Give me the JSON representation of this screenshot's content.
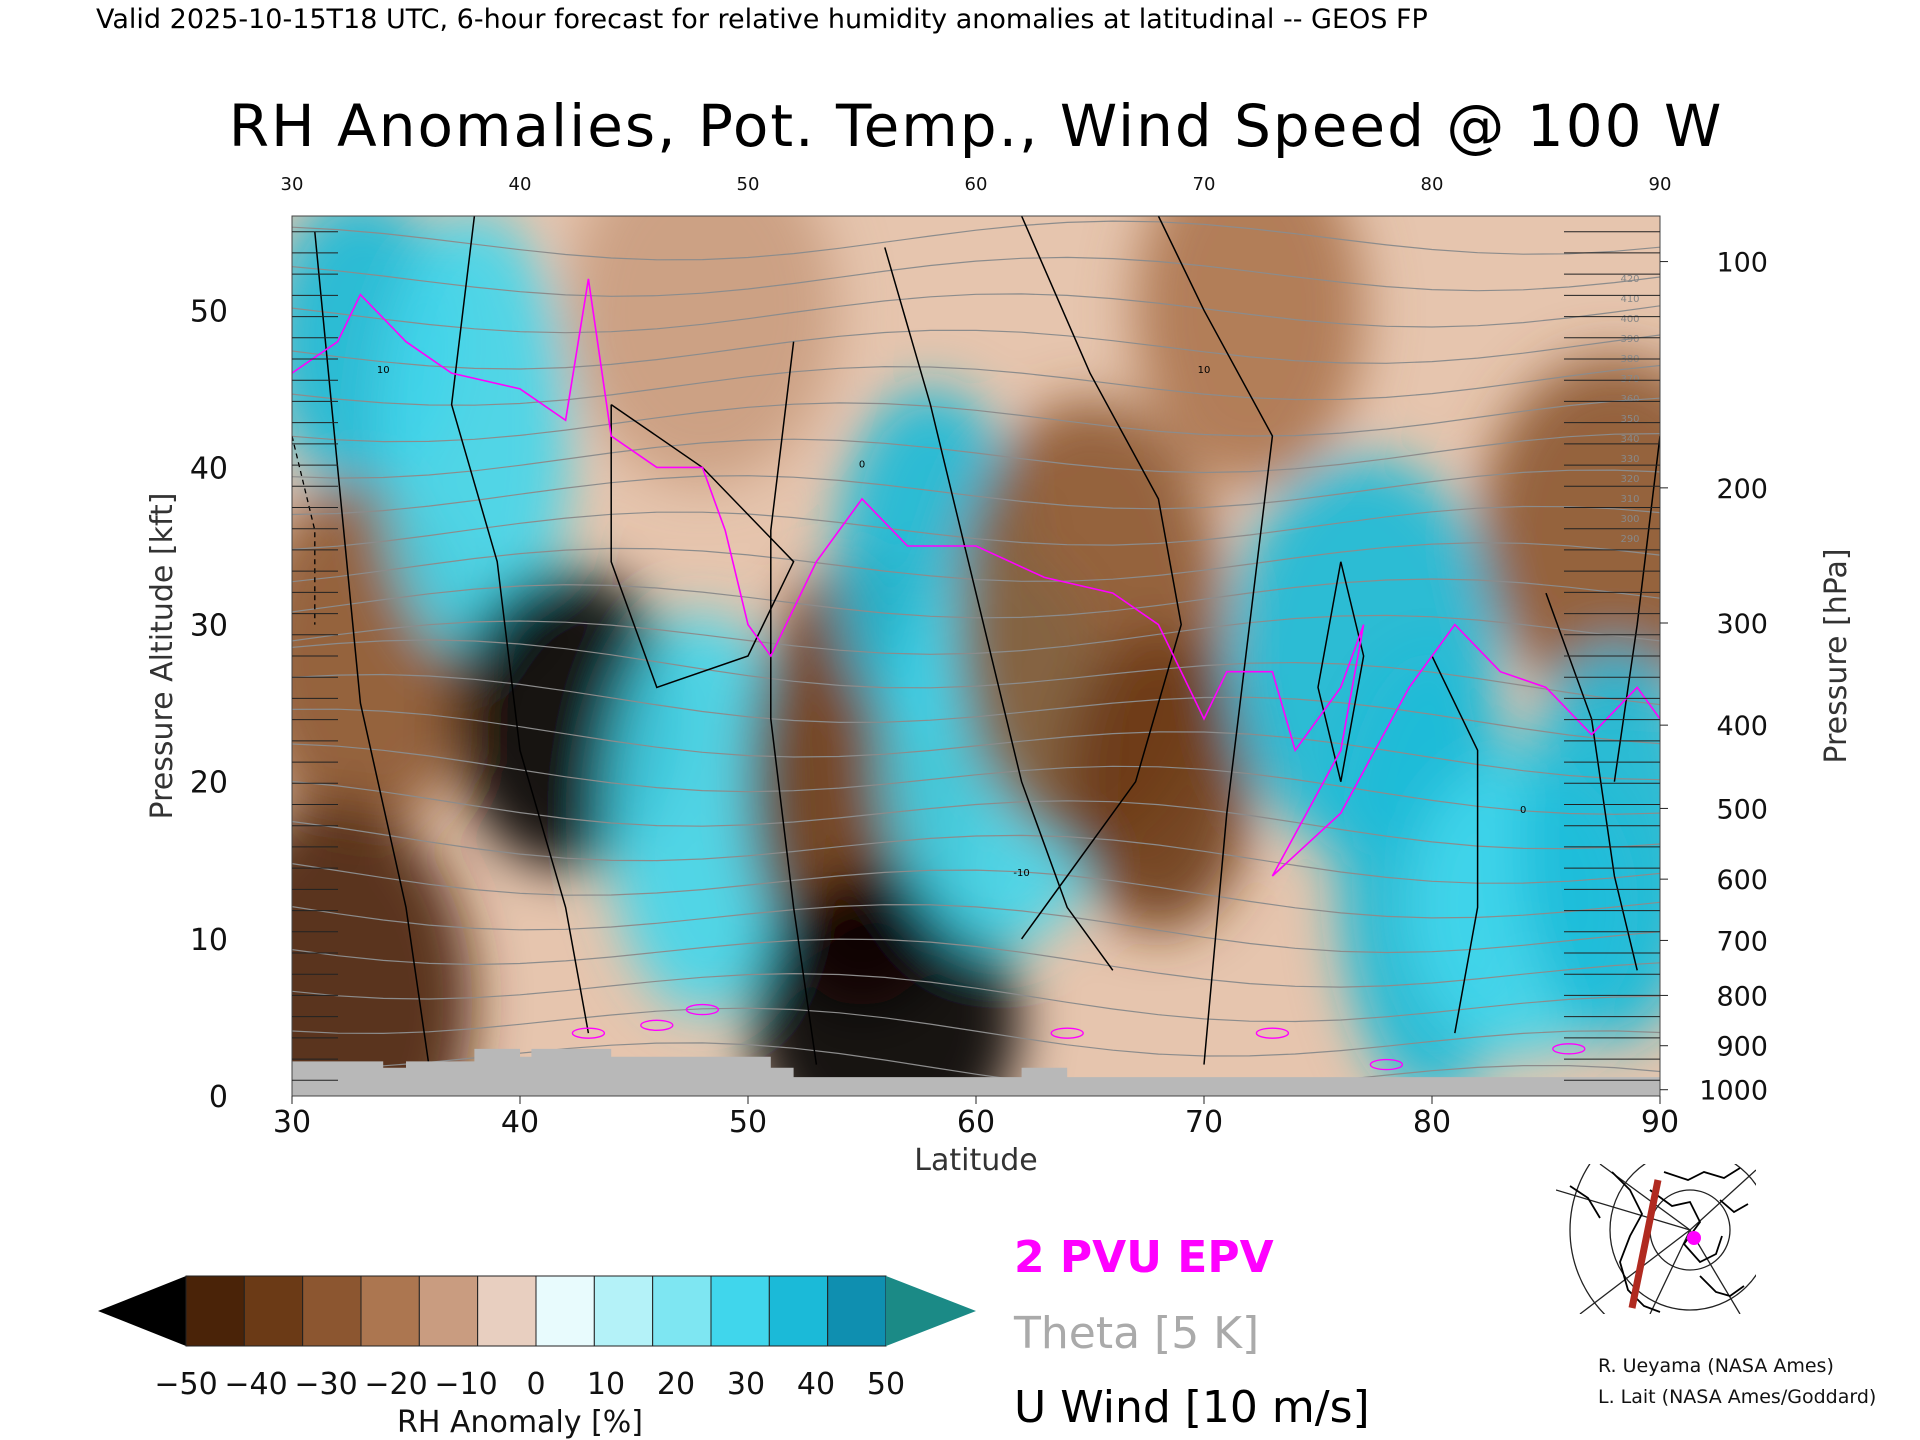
{
  "header": {
    "valid_line": "Valid 2025-10-15T18 UTC, 6-hour forecast for relative humidity anomalies at latitudinal -- GEOS FP"
  },
  "chart_data": {
    "type": "heatmap",
    "title": "RH Anomalies, Pot. Temp., Wind Speed @ 100 W",
    "xlabel": "Latitude",
    "ylabel": "Pressure Altitude [kft]",
    "y2label": "Pressure [hPa]",
    "xlim": [
      30,
      90
    ],
    "ylim": [
      0,
      56
    ],
    "x_ticks": [
      "30",
      "40",
      "50",
      "60",
      "70",
      "80",
      "90"
    ],
    "x_ticks_top": [
      "30",
      "40",
      "50",
      "60",
      "70",
      "80",
      "90"
    ],
    "y_ticks": [
      "0",
      "10",
      "20",
      "30",
      "40",
      "50"
    ],
    "pressure_levels": [
      {
        "hpa": "100",
        "kft": 53.1
      },
      {
        "hpa": "200",
        "kft": 38.7
      },
      {
        "hpa": "300",
        "kft": 30.1
      },
      {
        "hpa": "400",
        "kft": 23.6
      },
      {
        "hpa": "500",
        "kft": 18.3
      },
      {
        "hpa": "600",
        "kft": 13.8
      },
      {
        "hpa": "700",
        "kft": 9.9
      },
      {
        "hpa": "800",
        "kft": 6.4
      },
      {
        "hpa": "900",
        "kft": 3.2
      },
      {
        "hpa": "1000",
        "kft": 0.4
      }
    ],
    "colorbar": {
      "label": "RH Anomaly [%]",
      "tick_labels": [
        "-50",
        "-40",
        "-30",
        "-20",
        "-10",
        "0",
        "10",
        "20",
        "30",
        "40",
        "50"
      ],
      "colors": [
        "#000000",
        "#4a2308",
        "#6b3a16",
        "#8c5630",
        "#ac7650",
        "#c99c80",
        "#e8cfc0",
        "#e8fbfd",
        "#b4f2f8",
        "#7ee6f2",
        "#40d6ec",
        "#1bbad8",
        "#0f8fb0",
        "#1b8a86"
      ]
    },
    "rh_anomaly_regions": [
      {
        "lat": 33,
        "kft": 48,
        "value": 40
      },
      {
        "lat": 33,
        "kft": 28,
        "value": -30
      },
      {
        "lat": 32,
        "kft": 6,
        "value": -45
      },
      {
        "lat": 38,
        "kft": 42,
        "value": 30
      },
      {
        "lat": 42,
        "kft": 24,
        "value": -50
      },
      {
        "lat": 48,
        "kft": 50,
        "value": -10
      },
      {
        "lat": 48,
        "kft": 18,
        "value": 30
      },
      {
        "lat": 55,
        "kft": 20,
        "value": -40
      },
      {
        "lat": 56,
        "kft": 5,
        "value": -50
      },
      {
        "lat": 58,
        "kft": 34,
        "value": 40
      },
      {
        "lat": 61,
        "kft": 22,
        "value": 35
      },
      {
        "lat": 65,
        "kft": 30,
        "value": -30
      },
      {
        "lat": 68,
        "kft": 20,
        "value": -40
      },
      {
        "lat": 72,
        "kft": 50,
        "value": -20
      },
      {
        "lat": 77,
        "kft": 28,
        "value": 40
      },
      {
        "lat": 80,
        "kft": 14,
        "value": 45
      },
      {
        "lat": 84,
        "kft": 12,
        "value": 30
      },
      {
        "lat": 88,
        "kft": 36,
        "value": -30
      },
      {
        "lat": 88,
        "kft": 16,
        "value": 45
      }
    ],
    "theta_labels": [
      "420",
      "410",
      "400",
      "390",
      "380",
      "370",
      "360",
      "350",
      "340",
      "330",
      "320",
      "310",
      "300",
      "290"
    ],
    "u_wind_labels": [
      "10",
      "0",
      "-10"
    ],
    "legend": [
      {
        "label": "2 PVU EPV",
        "color": "#ff00ff"
      },
      {
        "label": "Theta [5 K]",
        "color": "#aaaaaa"
      },
      {
        "label": "U Wind [10 m/s]",
        "color": "#000000"
      }
    ]
  },
  "inset_map": {
    "marker_color": "#ff00ff",
    "section_color": "#b02a20"
  },
  "credits": {
    "line1": "R. Ueyama (NASA Ames)",
    "line2": "L. Lait (NASA Ames/Goddard)"
  }
}
